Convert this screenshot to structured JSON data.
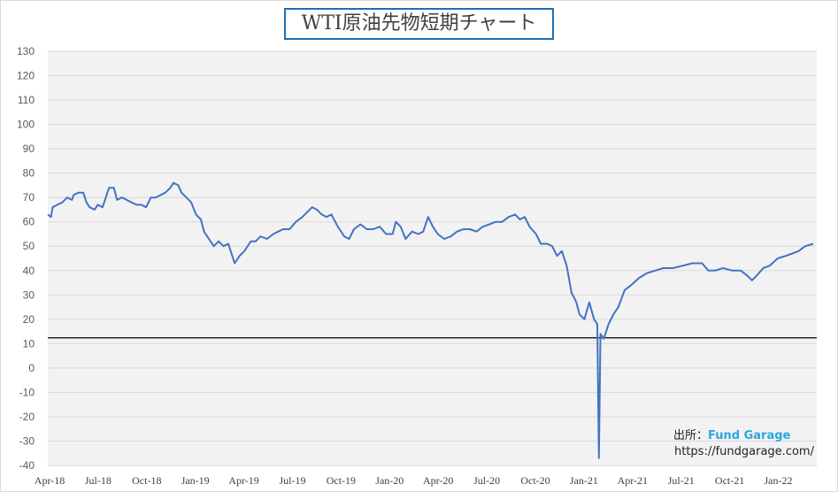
{
  "chart_data": {
    "type": "line",
    "title": "WTI原油先物短期チャート",
    "xlabel": "",
    "ylabel": "",
    "ylim": [
      -40,
      130
    ],
    "yticks": [
      130,
      120,
      110,
      100,
      90,
      80,
      70,
      60,
      50,
      40,
      30,
      20,
      10,
      0,
      -10,
      -20,
      -30,
      -40
    ],
    "x_unit": "months since Apr-18",
    "xlim": [
      0,
      47.5
    ],
    "xticks": [
      "Apr-18",
      "Jul-18",
      "Oct-18",
      "Jan-19",
      "Apr-19",
      "Jul-19",
      "Oct-19",
      "Jan-20",
      "Apr-20",
      "Jul-20",
      "Oct-20",
      "Jan-21",
      "Apr-21",
      "Jul-21",
      "Oct-21",
      "Jan-22"
    ],
    "reference_line": 12.4,
    "grid": true,
    "colors": {
      "line": "#4472c4",
      "reference": "#000000",
      "negative_tick": "#c00000",
      "plot_bg": "#f2f2f2"
    },
    "series": [
      {
        "name": "WTI",
        "points": [
          [
            0,
            63
          ],
          [
            0.2,
            62
          ],
          [
            0.3,
            66
          ],
          [
            0.6,
            67
          ],
          [
            0.9,
            68
          ],
          [
            1.2,
            70
          ],
          [
            1.5,
            69
          ],
          [
            1.6,
            71
          ],
          [
            1.9,
            72
          ],
          [
            2.2,
            72
          ],
          [
            2.4,
            68
          ],
          [
            2.6,
            66
          ],
          [
            2.9,
            65
          ],
          [
            3.1,
            67
          ],
          [
            3.4,
            66
          ],
          [
            3.6,
            70
          ],
          [
            3.8,
            74
          ],
          [
            4.1,
            74
          ],
          [
            4.3,
            69
          ],
          [
            4.6,
            70
          ],
          [
            4.9,
            69
          ],
          [
            5.2,
            68
          ],
          [
            5.5,
            67
          ],
          [
            5.8,
            67
          ],
          [
            6.1,
            66
          ],
          [
            6.4,
            70
          ],
          [
            6.7,
            70
          ],
          [
            7.0,
            71
          ],
          [
            7.3,
            72
          ],
          [
            7.6,
            74
          ],
          [
            7.8,
            76
          ],
          [
            8.1,
            75
          ],
          [
            8.3,
            72
          ],
          [
            8.6,
            70
          ],
          [
            8.9,
            68
          ],
          [
            9.2,
            63
          ],
          [
            9.5,
            61
          ],
          [
            9.7,
            56
          ],
          [
            10.0,
            53
          ],
          [
            10.3,
            50
          ],
          [
            10.6,
            52
          ],
          [
            10.9,
            50
          ],
          [
            11.2,
            51
          ],
          [
            11.4,
            47
          ],
          [
            11.6,
            43
          ],
          [
            11.9,
            46
          ],
          [
            12.2,
            48
          ],
          [
            12.6,
            52
          ],
          [
            12.9,
            52
          ],
          [
            13.2,
            54
          ],
          [
            13.6,
            53
          ],
          [
            14.0,
            55
          ],
          [
            14.3,
            56
          ],
          [
            14.6,
            57
          ],
          [
            15.0,
            57
          ],
          [
            15.4,
            60
          ],
          [
            15.8,
            62
          ],
          [
            16.1,
            64
          ],
          [
            16.4,
            66
          ],
          [
            16.7,
            65
          ],
          [
            17.0,
            63
          ],
          [
            17.3,
            62
          ],
          [
            17.6,
            63
          ],
          [
            18.0,
            58
          ],
          [
            18.4,
            54
          ],
          [
            18.7,
            53
          ],
          [
            19.0,
            57
          ],
          [
            19.4,
            59
          ],
          [
            19.8,
            57
          ],
          [
            20.2,
            57
          ],
          [
            20.6,
            58
          ],
          [
            21.0,
            55
          ],
          [
            21.4,
            55
          ],
          [
            21.6,
            60
          ],
          [
            21.9,
            58
          ],
          [
            22.2,
            53
          ],
          [
            22.6,
            56
          ],
          [
            23.0,
            55
          ],
          [
            23.3,
            56
          ],
          [
            23.6,
            62
          ],
          [
            23.9,
            58
          ],
          [
            24.2,
            55
          ],
          [
            24.6,
            53
          ],
          [
            25.0,
            54
          ],
          [
            25.4,
            56
          ],
          [
            25.8,
            57
          ],
          [
            26.2,
            57
          ],
          [
            26.6,
            56
          ],
          [
            27.0,
            58
          ],
          [
            27.4,
            59
          ],
          [
            27.8,
            60
          ],
          [
            28.2,
            60
          ],
          [
            28.6,
            62
          ],
          [
            29.0,
            63
          ],
          [
            29.3,
            61
          ],
          [
            29.6,
            62
          ],
          [
            29.9,
            58
          ],
          [
            30.3,
            55
          ],
          [
            30.6,
            51
          ],
          [
            31.0,
            51
          ],
          [
            31.3,
            50
          ],
          [
            31.6,
            46
          ],
          [
            31.9,
            48
          ],
          [
            32.2,
            42
          ],
          [
            32.5,
            31
          ],
          [
            32.8,
            27
          ],
          [
            33.0,
            22
          ],
          [
            33.3,
            20
          ],
          [
            33.6,
            27
          ],
          [
            33.9,
            20
          ],
          [
            34.1,
            18
          ],
          [
            34.2,
            -37
          ],
          [
            34.3,
            14
          ],
          [
            34.5,
            12
          ],
          [
            34.8,
            18
          ],
          [
            35.1,
            22
          ],
          [
            35.4,
            25
          ],
          [
            35.8,
            32
          ],
          [
            36.2,
            34
          ],
          [
            36.7,
            37
          ],
          [
            37.2,
            39
          ],
          [
            37.7,
            40
          ],
          [
            38.2,
            41
          ],
          [
            38.8,
            41
          ],
          [
            39.4,
            42
          ],
          [
            40.0,
            43
          ],
          [
            40.6,
            43
          ],
          [
            41.0,
            40
          ],
          [
            41.4,
            40
          ],
          [
            41.9,
            41
          ],
          [
            42.5,
            40
          ],
          [
            43.0,
            40
          ],
          [
            43.4,
            38
          ],
          [
            43.7,
            36
          ],
          [
            44.0,
            38
          ],
          [
            44.4,
            41
          ],
          [
            44.8,
            42
          ],
          [
            45.3,
            45
          ],
          [
            45.8,
            46
          ],
          [
            46.2,
            47
          ],
          [
            46.6,
            48
          ],
          [
            47.0,
            50
          ],
          [
            47.5,
            51
          ]
        ]
      }
    ]
  },
  "source": {
    "label": "出所：",
    "name": "Fund Garage",
    "url": "https://fundgarage.com/"
  }
}
